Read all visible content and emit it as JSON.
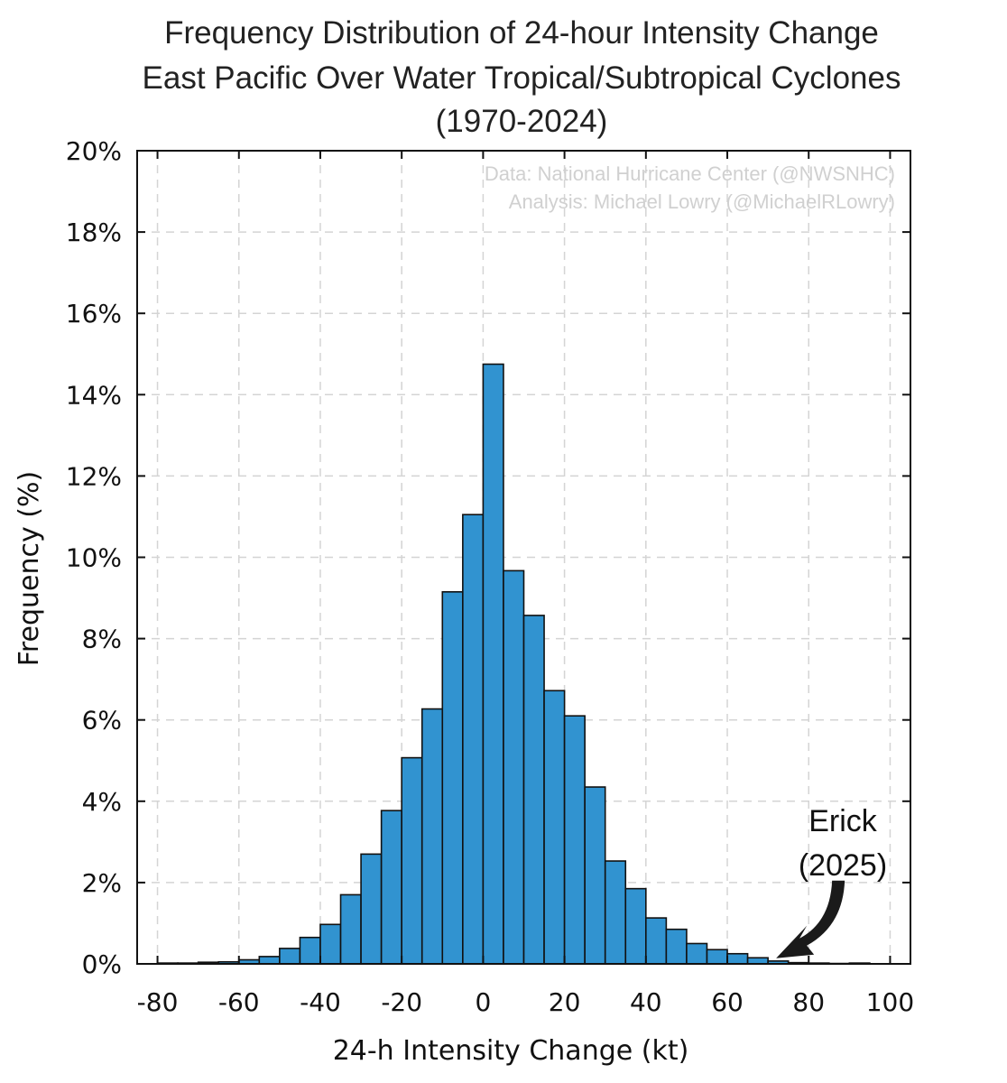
{
  "chart_data": {
    "type": "bar",
    "title": [
      "Frequency Distribution of 24-hour Intensity Change",
      "East Pacific Over Water Tropical/Subtropical Cyclones",
      "(1970-2024)"
    ],
    "xlabel": "24-h Intensity Change (kt)",
    "ylabel": "Frequency (%)",
    "xlim": [
      -85,
      105
    ],
    "ylim": [
      0,
      20
    ],
    "x_ticks": [
      -80,
      -60,
      -40,
      -20,
      0,
      20,
      40,
      60,
      80,
      100
    ],
    "x_tick_labels": [
      "-80",
      "-60",
      "-40",
      "-20",
      "0",
      "20",
      "40",
      "60",
      "80",
      "100"
    ],
    "y_ticks": [
      0,
      2,
      4,
      6,
      8,
      10,
      12,
      14,
      16,
      18,
      20
    ],
    "y_tick_labels": [
      "0%",
      "2%",
      "4%",
      "6%",
      "8%",
      "10%",
      "12%",
      "14%",
      "16%",
      "18%",
      "20%"
    ],
    "grid": true,
    "bin_width": 5,
    "bins": [
      -80,
      -75,
      -70,
      -65,
      -60,
      -55,
      -50,
      -45,
      -40,
      -35,
      -30,
      -25,
      -20,
      -15,
      -10,
      -5,
      0,
      5,
      10,
      15,
      20,
      25,
      30,
      35,
      40,
      45,
      50,
      55,
      60,
      65,
      70,
      75,
      80,
      85,
      90
    ],
    "values": [
      0.02,
      0.02,
      0.04,
      0.05,
      0.1,
      0.18,
      0.38,
      0.65,
      0.97,
      1.7,
      2.7,
      3.77,
      5.07,
      6.27,
      9.15,
      11.05,
      14.75,
      9.67,
      8.57,
      6.72,
      6.1,
      4.35,
      2.53,
      1.85,
      1.13,
      0.85,
      0.5,
      0.35,
      0.25,
      0.15,
      0.07,
      0.03,
      0.02,
      0.01,
      0.02
    ],
    "bar_color": "#3193d0",
    "edge_color": "#111111",
    "credits": [
      "Data: National Hurricane Center (@NWSNHC)",
      "Analysis: Michael Lowry (@MichaelRLowry)"
    ],
    "annotation": {
      "lines": [
        "Erick",
        "(2025)"
      ],
      "x": 72,
      "y": 0.05
    }
  }
}
